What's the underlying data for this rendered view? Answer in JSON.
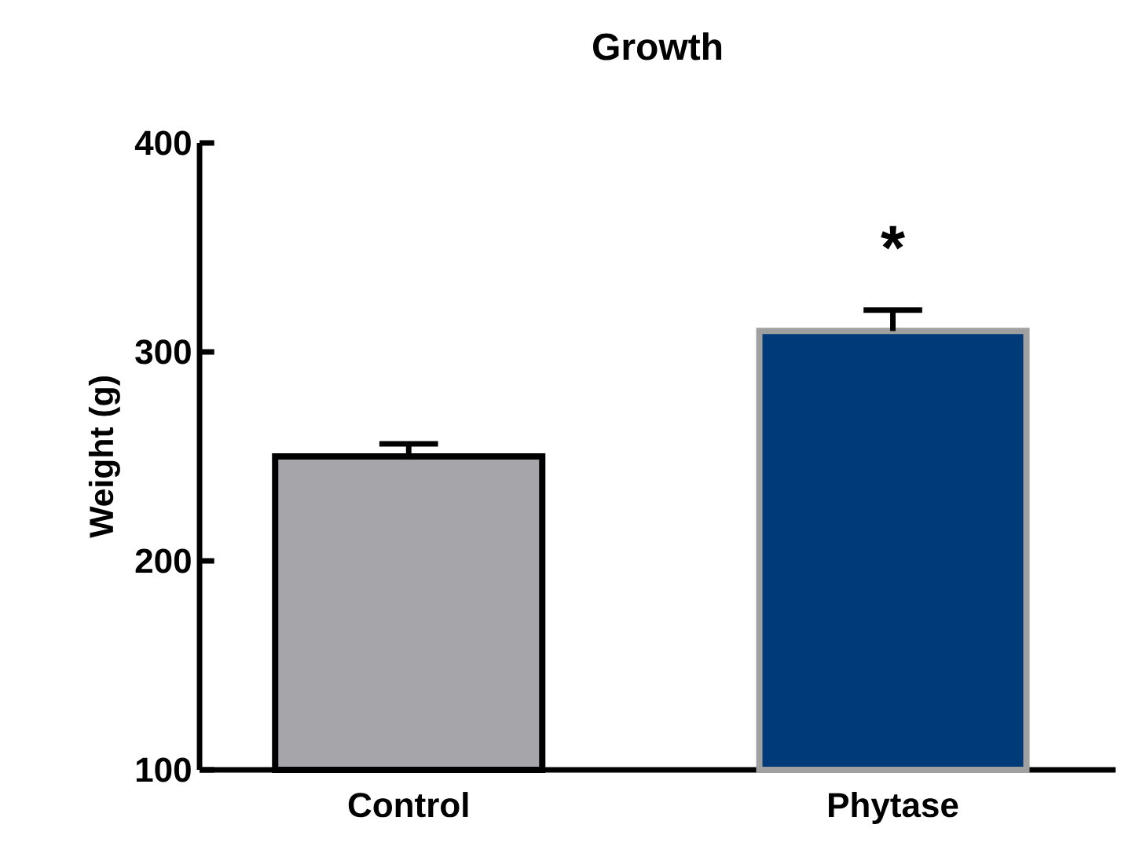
{
  "chart_data": {
    "type": "bar",
    "title": "Growth",
    "ylabel": "Weight (g)",
    "categories": [
      "Control",
      "Phytase"
    ],
    "values": [
      250,
      310
    ],
    "errors": [
      6,
      10
    ],
    "colors": [
      "#a6a5aa",
      "#003a78"
    ],
    "ylim": [
      100,
      400
    ],
    "yticks": [
      100,
      200,
      300,
      400
    ],
    "annotations": [
      "*"
    ]
  }
}
